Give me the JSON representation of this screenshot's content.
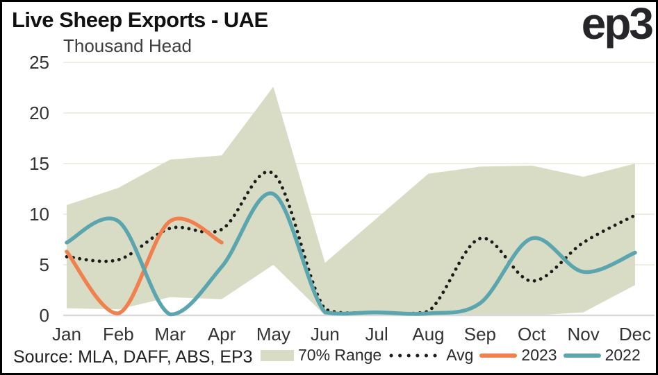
{
  "header": {
    "title": "Live Sheep Exports - UAE",
    "subtitle": "Thousand Head",
    "logo": "ep3"
  },
  "source_note": "Source: MLA, DAFF, ABS, EP3",
  "legend": {
    "items": [
      {
        "label": "70% Range",
        "type": "band"
      },
      {
        "label": "Avg",
        "type": "dotted-line"
      },
      {
        "label": "2023",
        "type": "solid-line"
      },
      {
        "label": "2022",
        "type": "solid-line"
      }
    ]
  },
  "colors": {
    "band": "#d9dcc4",
    "avg": "#1b1b1b",
    "y2023": "#f0814f",
    "y2022": "#5ba6ae",
    "grid": "#efeee1",
    "axis": "#d9d9d9",
    "text": "#333333",
    "title": "#111111",
    "logo": "#26262a"
  },
  "chart_data": {
    "type": "line",
    "title": "Live Sheep Exports - UAE",
    "ylabel": "Thousand Head",
    "xlabel": "",
    "categories": [
      "Jan",
      "Feb",
      "Mar",
      "Apr",
      "May",
      "Jun",
      "Jul",
      "Aug",
      "Sep",
      "Oct",
      "Nov",
      "Dec"
    ],
    "y_ticks": [
      0,
      5,
      10,
      15,
      20,
      25
    ],
    "ylim": [
      0,
      25
    ],
    "grid": true,
    "legend_position": "bottom",
    "band": {
      "name": "70% Range",
      "lower": [
        0.7,
        0.6,
        1.8,
        1.6,
        5.0,
        0.0,
        0.0,
        0.0,
        0.0,
        0.0,
        0.3,
        3.0
      ],
      "upper": [
        10.9,
        12.6,
        15.4,
        15.8,
        22.6,
        5.2,
        9.6,
        14.0,
        14.7,
        14.8,
        13.7,
        15.0
      ]
    },
    "series": [
      {
        "name": "Avg",
        "style": "dotted",
        "values": [
          5.8,
          5.5,
          8.6,
          8.5,
          14.0,
          0.6,
          0.3,
          0.4,
          7.6,
          3.4,
          7.2,
          9.9
        ]
      },
      {
        "name": "2023",
        "style": "solid",
        "values": [
          6.3,
          0.2,
          9.3,
          7.2,
          null,
          null,
          null,
          null,
          null,
          null,
          null,
          null
        ]
      },
      {
        "name": "2022",
        "style": "solid",
        "values": [
          7.2,
          9.3,
          0.1,
          4.8,
          12.0,
          0.3,
          0.3,
          0.2,
          1.2,
          7.6,
          4.3,
          6.2
        ]
      }
    ]
  }
}
